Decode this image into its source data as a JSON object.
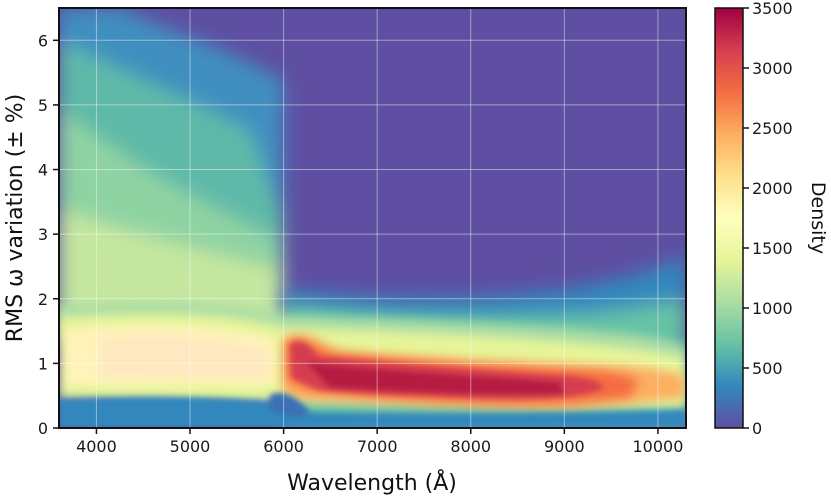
{
  "chart_data": {
    "type": "heatmap",
    "xlabel": "Wavelength (Å)",
    "ylabel": "RMS ω variation (± %)",
    "xlim": [
      3600,
      10300
    ],
    "ylim": [
      0,
      6.5
    ],
    "x_ticks": [
      4000,
      5000,
      6000,
      7000,
      8000,
      9000,
      10000
    ],
    "x_tick_labels": [
      "4000",
      "5000",
      "6000",
      "7000",
      "8000",
      "9000",
      "10000"
    ],
    "y_ticks": [
      0,
      1,
      2,
      3,
      4,
      5,
      6
    ],
    "y_tick_labels": [
      "0",
      "1",
      "2",
      "3",
      "4",
      "5",
      "6"
    ],
    "grid": true,
    "colormap": "Spectral_r",
    "colorbar": {
      "label": "Density",
      "range": [
        0,
        3500
      ],
      "ticks": [
        0,
        500,
        1000,
        1500,
        2000,
        2500,
        3000,
        3500
      ],
      "tick_labels": [
        "0",
        "500",
        "1000",
        "1500",
        "2000",
        "2500",
        "3000",
        "3500"
      ]
    },
    "density_ridge": [
      {
        "x": 3700,
        "y_peak": 1.0,
        "density": 1500
      },
      {
        "x": 4500,
        "y_peak": 1.05,
        "density": 1800
      },
      {
        "x": 5500,
        "y_peak": 1.0,
        "density": 1500
      },
      {
        "x": 6100,
        "y_peak": 1.0,
        "density": 3300
      },
      {
        "x": 6500,
        "y_peak": 0.72,
        "density": 3500
      },
      {
        "x": 7500,
        "y_peak": 0.65,
        "density": 3500
      },
      {
        "x": 8500,
        "y_peak": 0.52,
        "density": 3400
      },
      {
        "x": 9500,
        "y_peak": 0.6,
        "density": 2200
      },
      {
        "x": 10200,
        "y_peak": 0.75,
        "density": 1400
      }
    ]
  },
  "colors": {
    "spectral_stops": [
      "#5e4fa2",
      "#3288bd",
      "#66c2a5",
      "#abdda4",
      "#e6f598",
      "#ffffbf",
      "#fee08b",
      "#fdae61",
      "#f46d43",
      "#d53e4f",
      "#9e0142"
    ],
    "frame": "#111111",
    "grid": "#ffffff"
  }
}
